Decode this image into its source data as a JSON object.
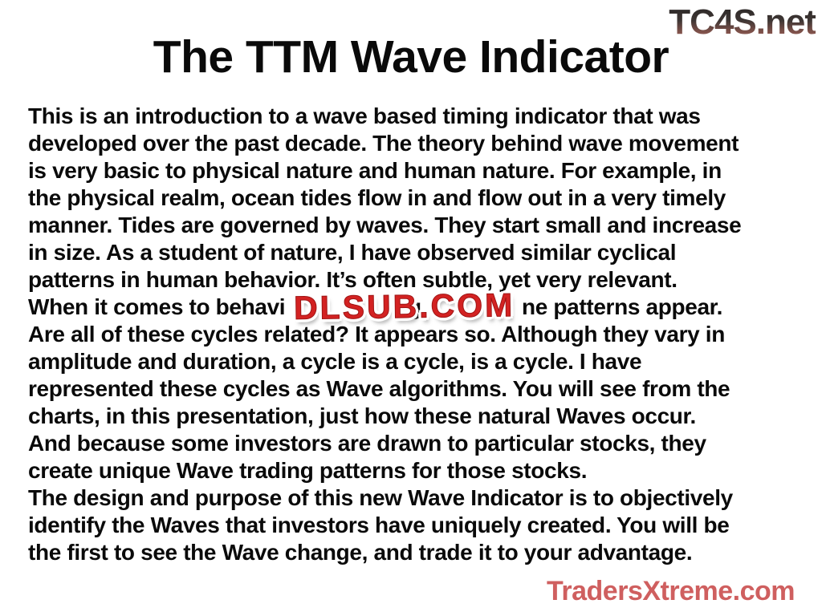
{
  "branding": {
    "tc4s_logo": "TC4S.net",
    "dlsub_watermark": "DLSUB.COM",
    "tradersxtreme_logo": "TradersXtreme.com"
  },
  "slide": {
    "title": "The TTM Wave Indicator",
    "body_lines": [
      "This is an introduction to a wave based timing indicator that was",
      "developed over the past decade. The theory behind wave movement",
      "is very basic to physical nature and human nature. For example, in",
      "the physical realm, ocean tides flow in and flow out in a very timely",
      "manner. Tides are governed by waves. They start small and increase",
      "in size. As a student of nature, I have observed similar cyclical",
      "patterns in human behavior. It’s often subtle, yet very relevant.",
      {
        "pre": "When it comes to behavi",
        "peek_descender": "g,",
        "post": "ne patterns appear.",
        "note": "middle of this line is hidden behind the DLSUB.COM watermark"
      },
      "Are all of these cycles related? It appears so. Although they vary in",
      "amplitude and duration, a cycle is a cycle, is a cycle. I have",
      "represented these cycles as Wave algorithms. You will see from the",
      "charts, in this presentation, just how these natural Waves occur.",
      "And because some investors are drawn to particular stocks, they",
      "create unique Wave trading patterns for those stocks.",
      "The design and purpose of this new Wave Indicator is to objectively",
      "identify the Waves that investors have uniquely created. You will be",
      "the first to see the Wave change, and trade it to your advantage."
    ]
  },
  "colors": {
    "background": "#ffffff",
    "body_text": "#0a0a0a",
    "dlsub_red": "#d32222",
    "tc4s_gradient_top": "#2b2726",
    "tc4s_gradient_bottom": "#9a6058",
    "tradersxtreme_fill": "#cf5f5f",
    "tradersxtreme_stroke": "#7b2424"
  }
}
